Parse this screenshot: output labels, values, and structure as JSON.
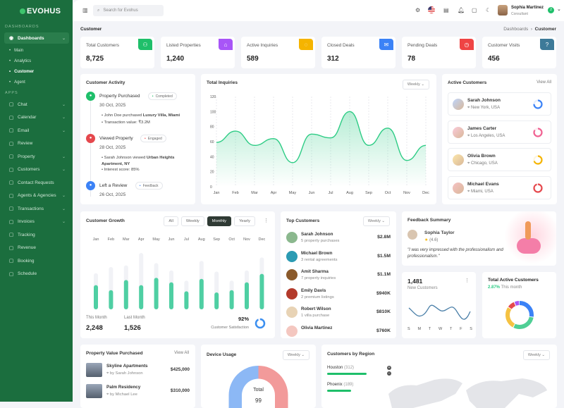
{
  "sidebar": {
    "logo": "EVOHUS",
    "section_dashboards": "DASHBOARDS",
    "dashboards": "Dashboards",
    "subitems": [
      "Main",
      "Analytics",
      "Customer",
      "Agent"
    ],
    "section_apps": "APPS",
    "items": [
      {
        "label": "Chat",
        "icon": "chat-icon",
        "chev": true
      },
      {
        "label": "Calendar",
        "icon": "calendar-icon",
        "chev": true
      },
      {
        "label": "Email",
        "icon": "mail-icon",
        "chev": true
      },
      {
        "label": "Review",
        "icon": "review-icon",
        "chev": false
      },
      {
        "label": "Property",
        "icon": "home-icon",
        "chev": true
      },
      {
        "label": "Customers",
        "icon": "users-icon",
        "chev": true
      },
      {
        "label": "Contact Requests",
        "icon": "help-icon",
        "chev": false
      },
      {
        "label": "Agents & Agencies",
        "icon": "agents-icon",
        "chev": true
      },
      {
        "label": "Transactions",
        "icon": "card-icon",
        "chev": true
      },
      {
        "label": "Invoices",
        "icon": "invoice-icon",
        "chev": true
      },
      {
        "label": "Tracking",
        "icon": "tracking-icon",
        "chev": false
      },
      {
        "label": "Revenue",
        "icon": "chart-icon",
        "chev": false
      },
      {
        "label": "Booking",
        "icon": "booking-icon",
        "chev": false
      },
      {
        "label": "Schedule",
        "icon": "clock-icon",
        "chev": false
      }
    ]
  },
  "header": {
    "search_placeholder": "Search for Evohus",
    "user_name": "Sophia Martinez",
    "user_role": "Consultant",
    "user_badge": "2"
  },
  "page": {
    "title": "Customer",
    "breadcrumb": [
      "Dashboards",
      "Customer"
    ]
  },
  "stats": [
    {
      "label": "Total Customers",
      "value": "8,725",
      "color": "#1fbf6a",
      "icon": "users-icon"
    },
    {
      "label": "Listed Properties",
      "value": "1,240",
      "color": "#a855f7",
      "icon": "home-icon"
    },
    {
      "label": "Active Inquiries",
      "value": "589",
      "color": "#f5b400",
      "icon": "chat-icon"
    },
    {
      "label": "Closed Deals",
      "value": "312",
      "color": "#3b82f6",
      "icon": "handshake-icon"
    },
    {
      "label": "Pending Deals",
      "value": "78",
      "color": "#ef4444",
      "icon": "clock-icon"
    },
    {
      "label": "Customer Visits",
      "value": "456",
      "color": "#3d7a99",
      "icon": "help-icon"
    }
  ],
  "activity": {
    "title": "Customer Activity",
    "items": [
      {
        "title": "Property Purchased",
        "tag": "Completed",
        "tag_color": "#1fbf6a",
        "color": "#1fbf6a",
        "date": "30 Oct, 2025",
        "bullets": [
          [
            "John Doe purchased ",
            "Luxury Villa, Miami"
          ],
          [
            "Transaction value: ₹3.2M",
            ""
          ]
        ]
      },
      {
        "title": "Viewed Property",
        "tag": "Engaged",
        "tag_color": "#ef4444",
        "color": "#e5484d",
        "date": "28 Oct, 2025",
        "bullets": [
          [
            "Sarah Johnson viewed ",
            "Urban Heights Apartment, NY"
          ],
          [
            "Interest score: 85%",
            ""
          ]
        ]
      },
      {
        "title": "Left a Review",
        "tag": "Feedback",
        "tag_color": "#3b82f6",
        "color": "#3b82f6",
        "date": "26 Oct, 2025",
        "bullets": []
      }
    ]
  },
  "inquiries": {
    "title": "Total Inquiries",
    "filter": "Weekly"
  },
  "chart_data": {
    "type": "area",
    "title": "Total Inquiries",
    "categories": [
      "Jan",
      "Feb",
      "Mar",
      "Apr",
      "May",
      "Jun",
      "Jul",
      "Aug",
      "Sep",
      "Oct",
      "Nov",
      "Dec"
    ],
    "values": [
      59,
      74,
      55,
      64,
      32,
      70,
      65,
      100,
      55,
      78,
      35,
      55
    ],
    "ylim": [
      0,
      120
    ],
    "yticks": [
      0,
      20,
      40,
      60,
      80,
      100,
      120
    ],
    "grid": "vertical dashed",
    "color": "#2ecc85"
  },
  "active_customers": {
    "title": "Active Customers",
    "view_all": "View All",
    "items": [
      {
        "name": "Sarah Johnson",
        "loc": "New York, USA",
        "color": "#3b82f6",
        "pct": 75
      },
      {
        "name": "James Carter",
        "loc": "Los Angeles, USA",
        "color": "#f06292",
        "pct": 85
      },
      {
        "name": "Olivia Brown",
        "loc": "Chicago, USA",
        "color": "#f5b400",
        "pct": 70
      },
      {
        "name": "Michael Evans",
        "loc": "Miami, USA",
        "color": "#e5484d",
        "pct": 95
      }
    ]
  },
  "growth": {
    "title": "Customer Growth",
    "tabs": [
      "All",
      "Weekly",
      "Monthly",
      "Yearly"
    ],
    "active_tab": "Monthly",
    "months": [
      "Jan",
      "Feb",
      "Mar",
      "Apr",
      "May",
      "Jun",
      "Jul",
      "Aug",
      "Sep",
      "Oct",
      "Nov",
      "Dec"
    ],
    "fill": [
      43,
      34,
      52,
      43,
      56,
      48,
      32,
      54,
      30,
      34,
      48,
      63
    ],
    "track": [
      64,
      75,
      78,
      100,
      82,
      69,
      51,
      86,
      67,
      51,
      69,
      92
    ],
    "this_month_label": "This Month",
    "this_month": "2,248",
    "last_month_label": "Last Month",
    "last_month": "1,526",
    "satisfaction": "92%",
    "satisfaction_value": 92,
    "satisfaction_label": "Customer Satisfaction"
  },
  "top_customers": {
    "title": "Top Customers",
    "filter": "Weekly",
    "items": [
      {
        "name": "Sarah Johnson",
        "sub": "5 property purchases",
        "amt": "$2.8M",
        "color": "#8bb88e"
      },
      {
        "name": "Michael Brown",
        "sub": "3 rental agreements",
        "amt": "$1.5M",
        "color": "#2b9bb3"
      },
      {
        "name": "Amit Sharma",
        "sub": "7 property inquiries",
        "amt": "$1.1M",
        "color": "#8b5a2b"
      },
      {
        "name": "Emily Davis",
        "sub": "2 premium listings",
        "amt": "$940K",
        "color": "#b33a2b"
      },
      {
        "name": "Robert Wilson",
        "sub": "1 villa purchase",
        "amt": "$810K",
        "color": "#e8d3b5"
      },
      {
        "name": "Olivia Martinez",
        "sub": "",
        "amt": "$760K",
        "color": "#f4c7c0"
      }
    ]
  },
  "feedback": {
    "title": "Feedback Summary",
    "name": "Sophia Taylor",
    "rating": "(4.6)",
    "quote": "\"I was very impressed with the professionalism and professionalism.\""
  },
  "new_customers": {
    "value": "1,481",
    "label": "New Customers",
    "days": [
      "S",
      "M",
      "T",
      "W",
      "T",
      "F",
      "S"
    ]
  },
  "total_active": {
    "title": "Total Active Customers",
    "pct": "2.87%",
    "suffix": "This month",
    "segments": [
      {
        "color": "#3b82f6",
        "value": 28
      },
      {
        "color": "#4fcf95",
        "value": 30
      },
      {
        "color": "#f5c242",
        "value": 27
      },
      {
        "color": "#e5484d",
        "value": 9
      },
      {
        "color": "#a855f7",
        "value": 6
      }
    ]
  },
  "property_value": {
    "title": "Property Value Purchased",
    "view_all": "View All",
    "items": [
      {
        "name": "Skyline Apartments",
        "by": "by Sarah Johnson",
        "amt": "$425,000"
      },
      {
        "name": "Palm Residency",
        "by": "by Michael Lee",
        "amt": "$310,000"
      }
    ]
  },
  "device": {
    "title": "Device Usage",
    "filter": "Weekly",
    "center_label": "Total",
    "center_value": "99"
  },
  "region": {
    "title": "Customers by Region",
    "filter": "Weekly",
    "items": [
      {
        "city": "Houston",
        "count": "(312)",
        "pct": 100
      },
      {
        "city": "Phoenix",
        "count": "(189)",
        "pct": 60
      }
    ]
  }
}
